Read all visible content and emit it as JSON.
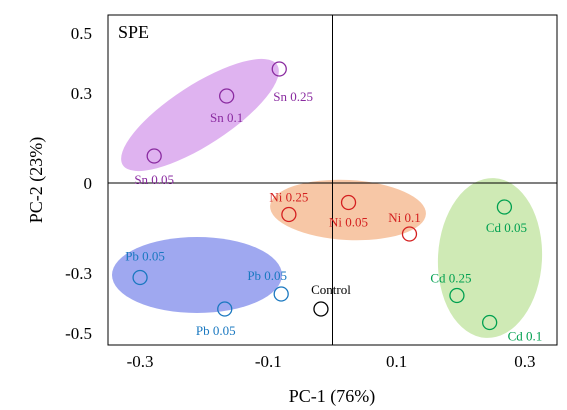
{
  "chart_data": {
    "type": "scatter",
    "title": "SPE",
    "xlabel": "PC-1 (76%)",
    "ylabel": "PC-2 (23%)",
    "xlim": [
      -0.35,
      0.35
    ],
    "ylim": [
      -0.54,
      0.56
    ],
    "xticks": [
      -0.3,
      -0.1,
      0.1,
      0.3
    ],
    "xtick_labels": [
      "-0.3",
      "-0.1",
      "0.1",
      "0.3"
    ],
    "yticks": [
      0.5,
      0.3,
      0,
      -0.3,
      -0.5
    ],
    "ytick_labels": [
      "0.5",
      "0.3",
      "0",
      "-0.3",
      "-0.5"
    ],
    "grid": false,
    "zero_lines": true,
    "groups": [
      {
        "color": "#8a2ba0",
        "fill": "#dfb3f0",
        "points": [
          {
            "label": "Sn 0.25",
            "x": -0.083,
            "y": 0.38
          },
          {
            "label": "Sn 0.1",
            "x": -0.165,
            "y": 0.29
          },
          {
            "label": "Sn 0.05",
            "x": -0.278,
            "y": 0.09
          }
        ]
      },
      {
        "color": "#d42020",
        "fill": "#f7c7a6",
        "points": [
          {
            "label": "Ni 0.25",
            "x": -0.068,
            "y": -0.105
          },
          {
            "label": "Ni 0.05",
            "x": 0.025,
            "y": -0.065
          },
          {
            "label": "Ni 0.1",
            "x": 0.12,
            "y": -0.17
          }
        ]
      },
      {
        "color": "#00a050",
        "fill": "#cfeab5",
        "points": [
          {
            "label": "Cd 0.05",
            "x": 0.268,
            "y": -0.08
          },
          {
            "label": "Cd 0.25",
            "x": 0.194,
            "y": -0.375
          },
          {
            "label": "Cd 0.1",
            "x": 0.245,
            "y": -0.465
          }
        ]
      },
      {
        "color": "#1a78c0",
        "fill": "#9fa8f0",
        "points": [
          {
            "label": "Pb 0.05",
            "x": -0.3,
            "y": -0.315
          },
          {
            "label": "Pb 0.05",
            "x": -0.168,
            "y": -0.42
          },
          {
            "label": "Pb 0.05",
            "x": -0.08,
            "y": -0.37
          }
        ]
      },
      {
        "color": "#000000",
        "fill": "none",
        "points": [
          {
            "label": "Control",
            "x": -0.018,
            "y": -0.42
          }
        ]
      }
    ]
  }
}
